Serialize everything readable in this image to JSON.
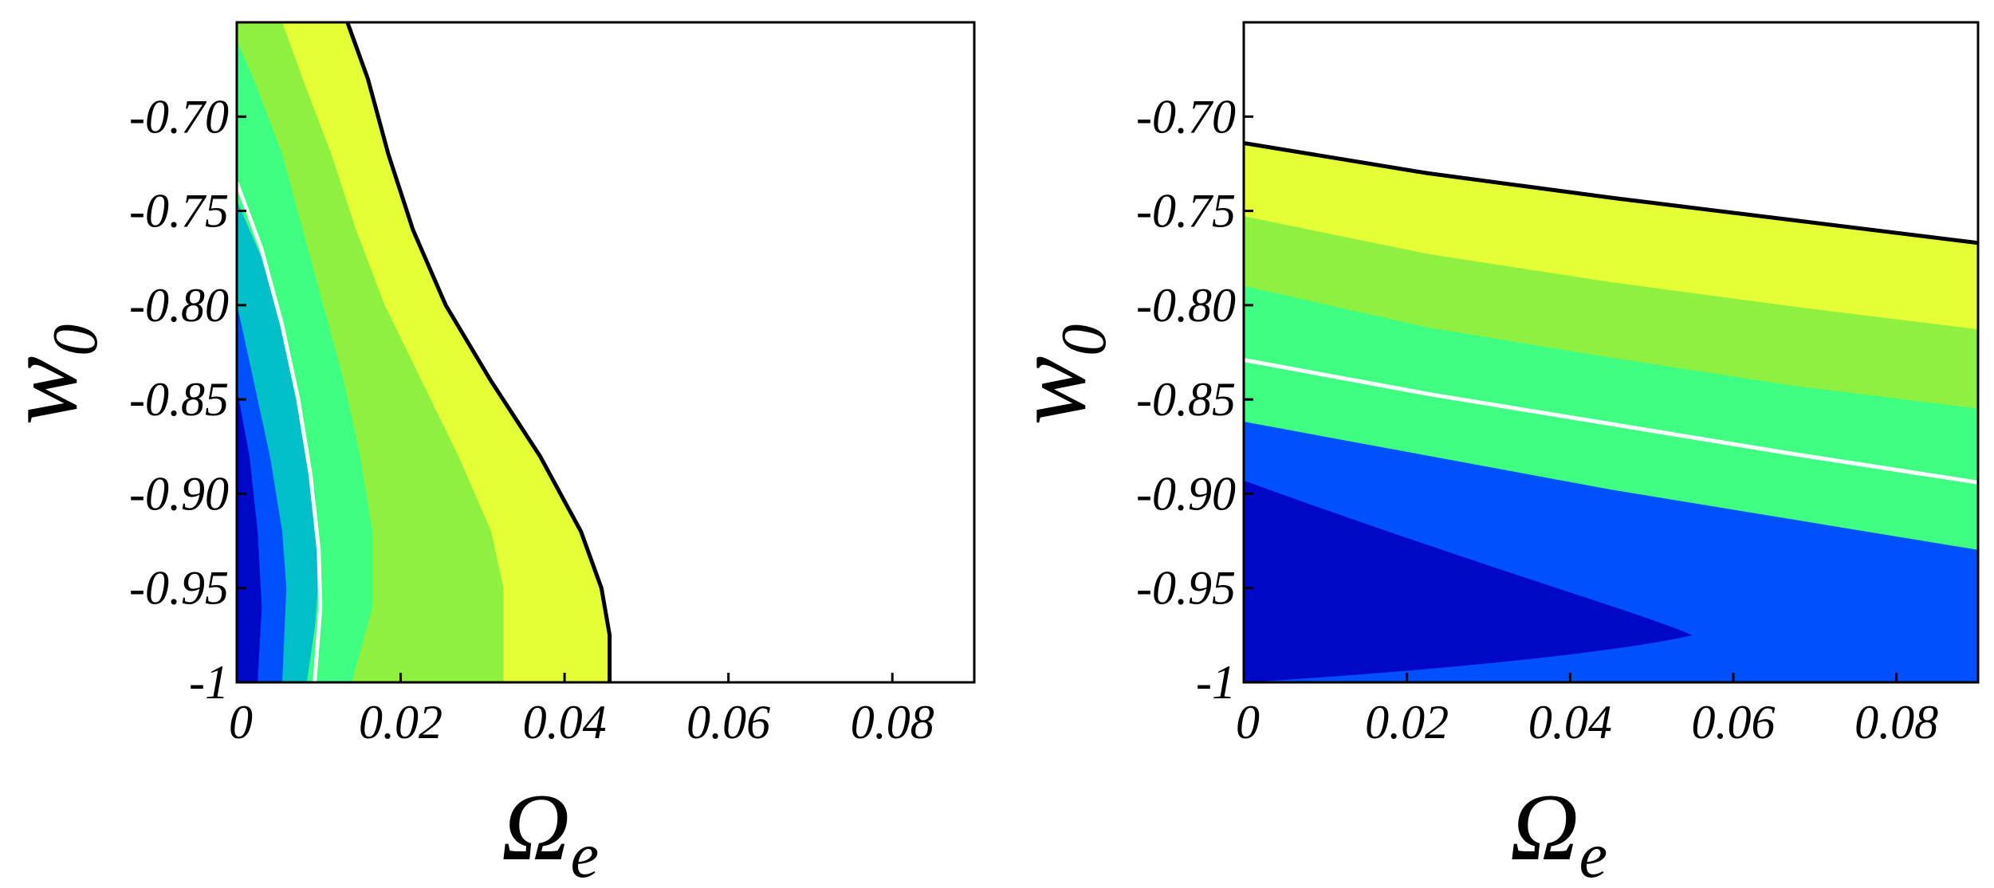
{
  "chart_data": [
    {
      "type": "contour",
      "panel": "left",
      "xlabel": "Ω",
      "xlabel_subscript": "e",
      "ylabel": "w",
      "ylabel_subscript": "0",
      "xlim": [
        0,
        0.09
      ],
      "ylim": [
        -1,
        -0.65
      ],
      "xticks": [
        {
          "value": 0,
          "label": "0"
        },
        {
          "value": 0.02,
          "label": "0.02"
        },
        {
          "value": 0.04,
          "label": "0.04"
        },
        {
          "value": 0.06,
          "label": "0.06"
        },
        {
          "value": 0.08,
          "label": "0.08"
        }
      ],
      "yticks": [
        {
          "value": -1,
          "label": "-1"
        },
        {
          "value": -0.95,
          "label": "-0.95"
        },
        {
          "value": -0.9,
          "label": "-0.90"
        },
        {
          "value": -0.85,
          "label": "-0.85"
        },
        {
          "value": -0.8,
          "label": "-0.80"
        },
        {
          "value": -0.75,
          "label": "-0.75"
        },
        {
          "value": -0.7,
          "label": "-0.70"
        }
      ],
      "bands": [
        {
          "color": "#e4ff36",
          "boundary": [
            [
              0.0135,
              -0.65
            ],
            [
              0.016,
              -0.68
            ],
            [
              0.0185,
              -0.72
            ],
            [
              0.0215,
              -0.76
            ],
            [
              0.0255,
              -0.8
            ],
            [
              0.031,
              -0.84
            ],
            [
              0.037,
              -0.88
            ],
            [
              0.042,
              -0.92
            ],
            [
              0.0445,
              -0.95
            ],
            [
              0.0455,
              -0.975
            ],
            [
              0.0455,
              -1.0
            ]
          ]
        },
        {
          "color": "#8ff13f",
          "boundary": [
            [
              0.0055,
              -0.65
            ],
            [
              0.008,
              -0.68
            ],
            [
              0.0115,
              -0.72
            ],
            [
              0.0145,
              -0.76
            ],
            [
              0.018,
              -0.8
            ],
            [
              0.0225,
              -0.84
            ],
            [
              0.027,
              -0.88
            ],
            [
              0.031,
              -0.92
            ],
            [
              0.0325,
              -0.95
            ],
            [
              0.0325,
              -1.0
            ]
          ]
        },
        {
          "color": "#3eff82",
          "boundary": [
            [
              0.0,
              -0.66
            ],
            [
              0.002,
              -0.68
            ],
            [
              0.0055,
              -0.72
            ],
            [
              0.008,
              -0.76
            ],
            [
              0.0105,
              -0.8
            ],
            [
              0.013,
              -0.84
            ],
            [
              0.015,
              -0.88
            ],
            [
              0.0165,
              -0.92
            ],
            [
              0.0165,
              -0.96
            ],
            [
              0.014,
              -1.0
            ]
          ]
        },
        {
          "color": "#00bfc8",
          "boundary": [
            [
              0.0,
              -0.745
            ],
            [
              0.0035,
              -0.78
            ],
            [
              0.006,
              -0.82
            ],
            [
              0.008,
              -0.86
            ],
            [
              0.0095,
              -0.9
            ],
            [
              0.01,
              -0.94
            ],
            [
              0.0095,
              -0.97
            ],
            [
              0.0085,
              -1.0
            ]
          ]
        },
        {
          "color": "#0050ff",
          "boundary": [
            [
              0.0,
              -0.8
            ],
            [
              0.002,
              -0.84
            ],
            [
              0.004,
              -0.88
            ],
            [
              0.0055,
              -0.92
            ],
            [
              0.006,
              -0.95
            ],
            [
              0.0055,
              -1.0
            ]
          ]
        },
        {
          "color": "#0008c8",
          "boundary": [
            [
              0.0,
              -0.845
            ],
            [
              0.0015,
              -0.88
            ],
            [
              0.0025,
              -0.92
            ],
            [
              0.003,
              -0.96
            ],
            [
              0.0025,
              -1.0
            ]
          ]
        }
      ],
      "black_contour": [
        [
          0.0135,
          -0.65
        ],
        [
          0.016,
          -0.68
        ],
        [
          0.0185,
          -0.72
        ],
        [
          0.0215,
          -0.76
        ],
        [
          0.0255,
          -0.8
        ],
        [
          0.031,
          -0.84
        ],
        [
          0.037,
          -0.88
        ],
        [
          0.042,
          -0.92
        ],
        [
          0.0445,
          -0.95
        ],
        [
          0.0455,
          -0.975
        ],
        [
          0.0455,
          -1.0
        ]
      ],
      "white_contour": [
        [
          0.0,
          -0.735
        ],
        [
          0.003,
          -0.77
        ],
        [
          0.0055,
          -0.81
        ],
        [
          0.0075,
          -0.85
        ],
        [
          0.009,
          -0.89
        ],
        [
          0.01,
          -0.93
        ],
        [
          0.0102,
          -0.96
        ],
        [
          0.0095,
          -1.0
        ]
      ]
    },
    {
      "type": "contour",
      "panel": "right",
      "xlabel": "Ω",
      "xlabel_subscript": "e",
      "ylabel": "w",
      "ylabel_subscript": "0",
      "xlim": [
        0,
        0.09
      ],
      "ylim": [
        -1,
        -0.65
      ],
      "xticks": [
        {
          "value": 0,
          "label": "0"
        },
        {
          "value": 0.02,
          "label": "0.02"
        },
        {
          "value": 0.04,
          "label": "0.04"
        },
        {
          "value": 0.06,
          "label": "0.06"
        },
        {
          "value": 0.08,
          "label": "0.08"
        }
      ],
      "yticks": [
        {
          "value": -1,
          "label": "-1"
        },
        {
          "value": -0.95,
          "label": "-0.95"
        },
        {
          "value": -0.9,
          "label": "-0.90"
        },
        {
          "value": -0.85,
          "label": "-0.85"
        },
        {
          "value": -0.8,
          "label": "-0.80"
        },
        {
          "value": -0.75,
          "label": "-0.75"
        },
        {
          "value": -0.7,
          "label": "-0.70"
        }
      ],
      "bands": [
        {
          "color": "#e4ff36",
          "boundary": [
            [
              0.0,
              -0.714
            ],
            [
              0.0225,
              -0.73
            ],
            [
              0.045,
              -0.743
            ],
            [
              0.0675,
              -0.755
            ],
            [
              0.09,
              -0.767
            ]
          ]
        },
        {
          "color": "#8ff13f",
          "boundary": [
            [
              0.0,
              -0.753
            ],
            [
              0.0225,
              -0.773
            ],
            [
              0.045,
              -0.788
            ],
            [
              0.0675,
              -0.801
            ],
            [
              0.09,
              -0.813
            ]
          ]
        },
        {
          "color": "#3eff82",
          "boundary": [
            [
              0.0,
              -0.79
            ],
            [
              0.0225,
              -0.812
            ],
            [
              0.045,
              -0.828
            ],
            [
              0.0675,
              -0.843
            ],
            [
              0.09,
              -0.855
            ]
          ]
        },
        {
          "color": "#00bfc8",
          "boundary": [
            [
              0.0,
              -0.862
            ],
            [
              0.0225,
              -0.88
            ],
            [
              0.045,
              -0.898
            ],
            [
              0.0675,
              -0.914
            ],
            [
              0.09,
              -0.93
            ]
          ]
        },
        {
          "color": "#0050ff",
          "boundary": [
            [
              0.0,
              -0.893
            ],
            [
              0.0225,
              -0.935
            ],
            [
              0.045,
              -0.963
            ],
            [
              0.055,
              -0.975
            ],
            [
              0.045,
              -0.985
            ],
            [
              0.0225,
              -0.995
            ],
            [
              0.0,
              -1.0
            ]
          ]
        }
      ],
      "black_contour": [
        [
          0.0,
          -0.714
        ],
        [
          0.0225,
          -0.73
        ],
        [
          0.045,
          -0.743
        ],
        [
          0.0675,
          -0.755
        ],
        [
          0.09,
          -0.767
        ]
      ],
      "white_contour": [
        [
          0.0,
          -0.829
        ],
        [
          0.0225,
          -0.847
        ],
        [
          0.045,
          -0.863
        ],
        [
          0.0675,
          -0.879
        ],
        [
          0.09,
          -0.894
        ]
      ],
      "base_color": "#0008c8"
    }
  ]
}
